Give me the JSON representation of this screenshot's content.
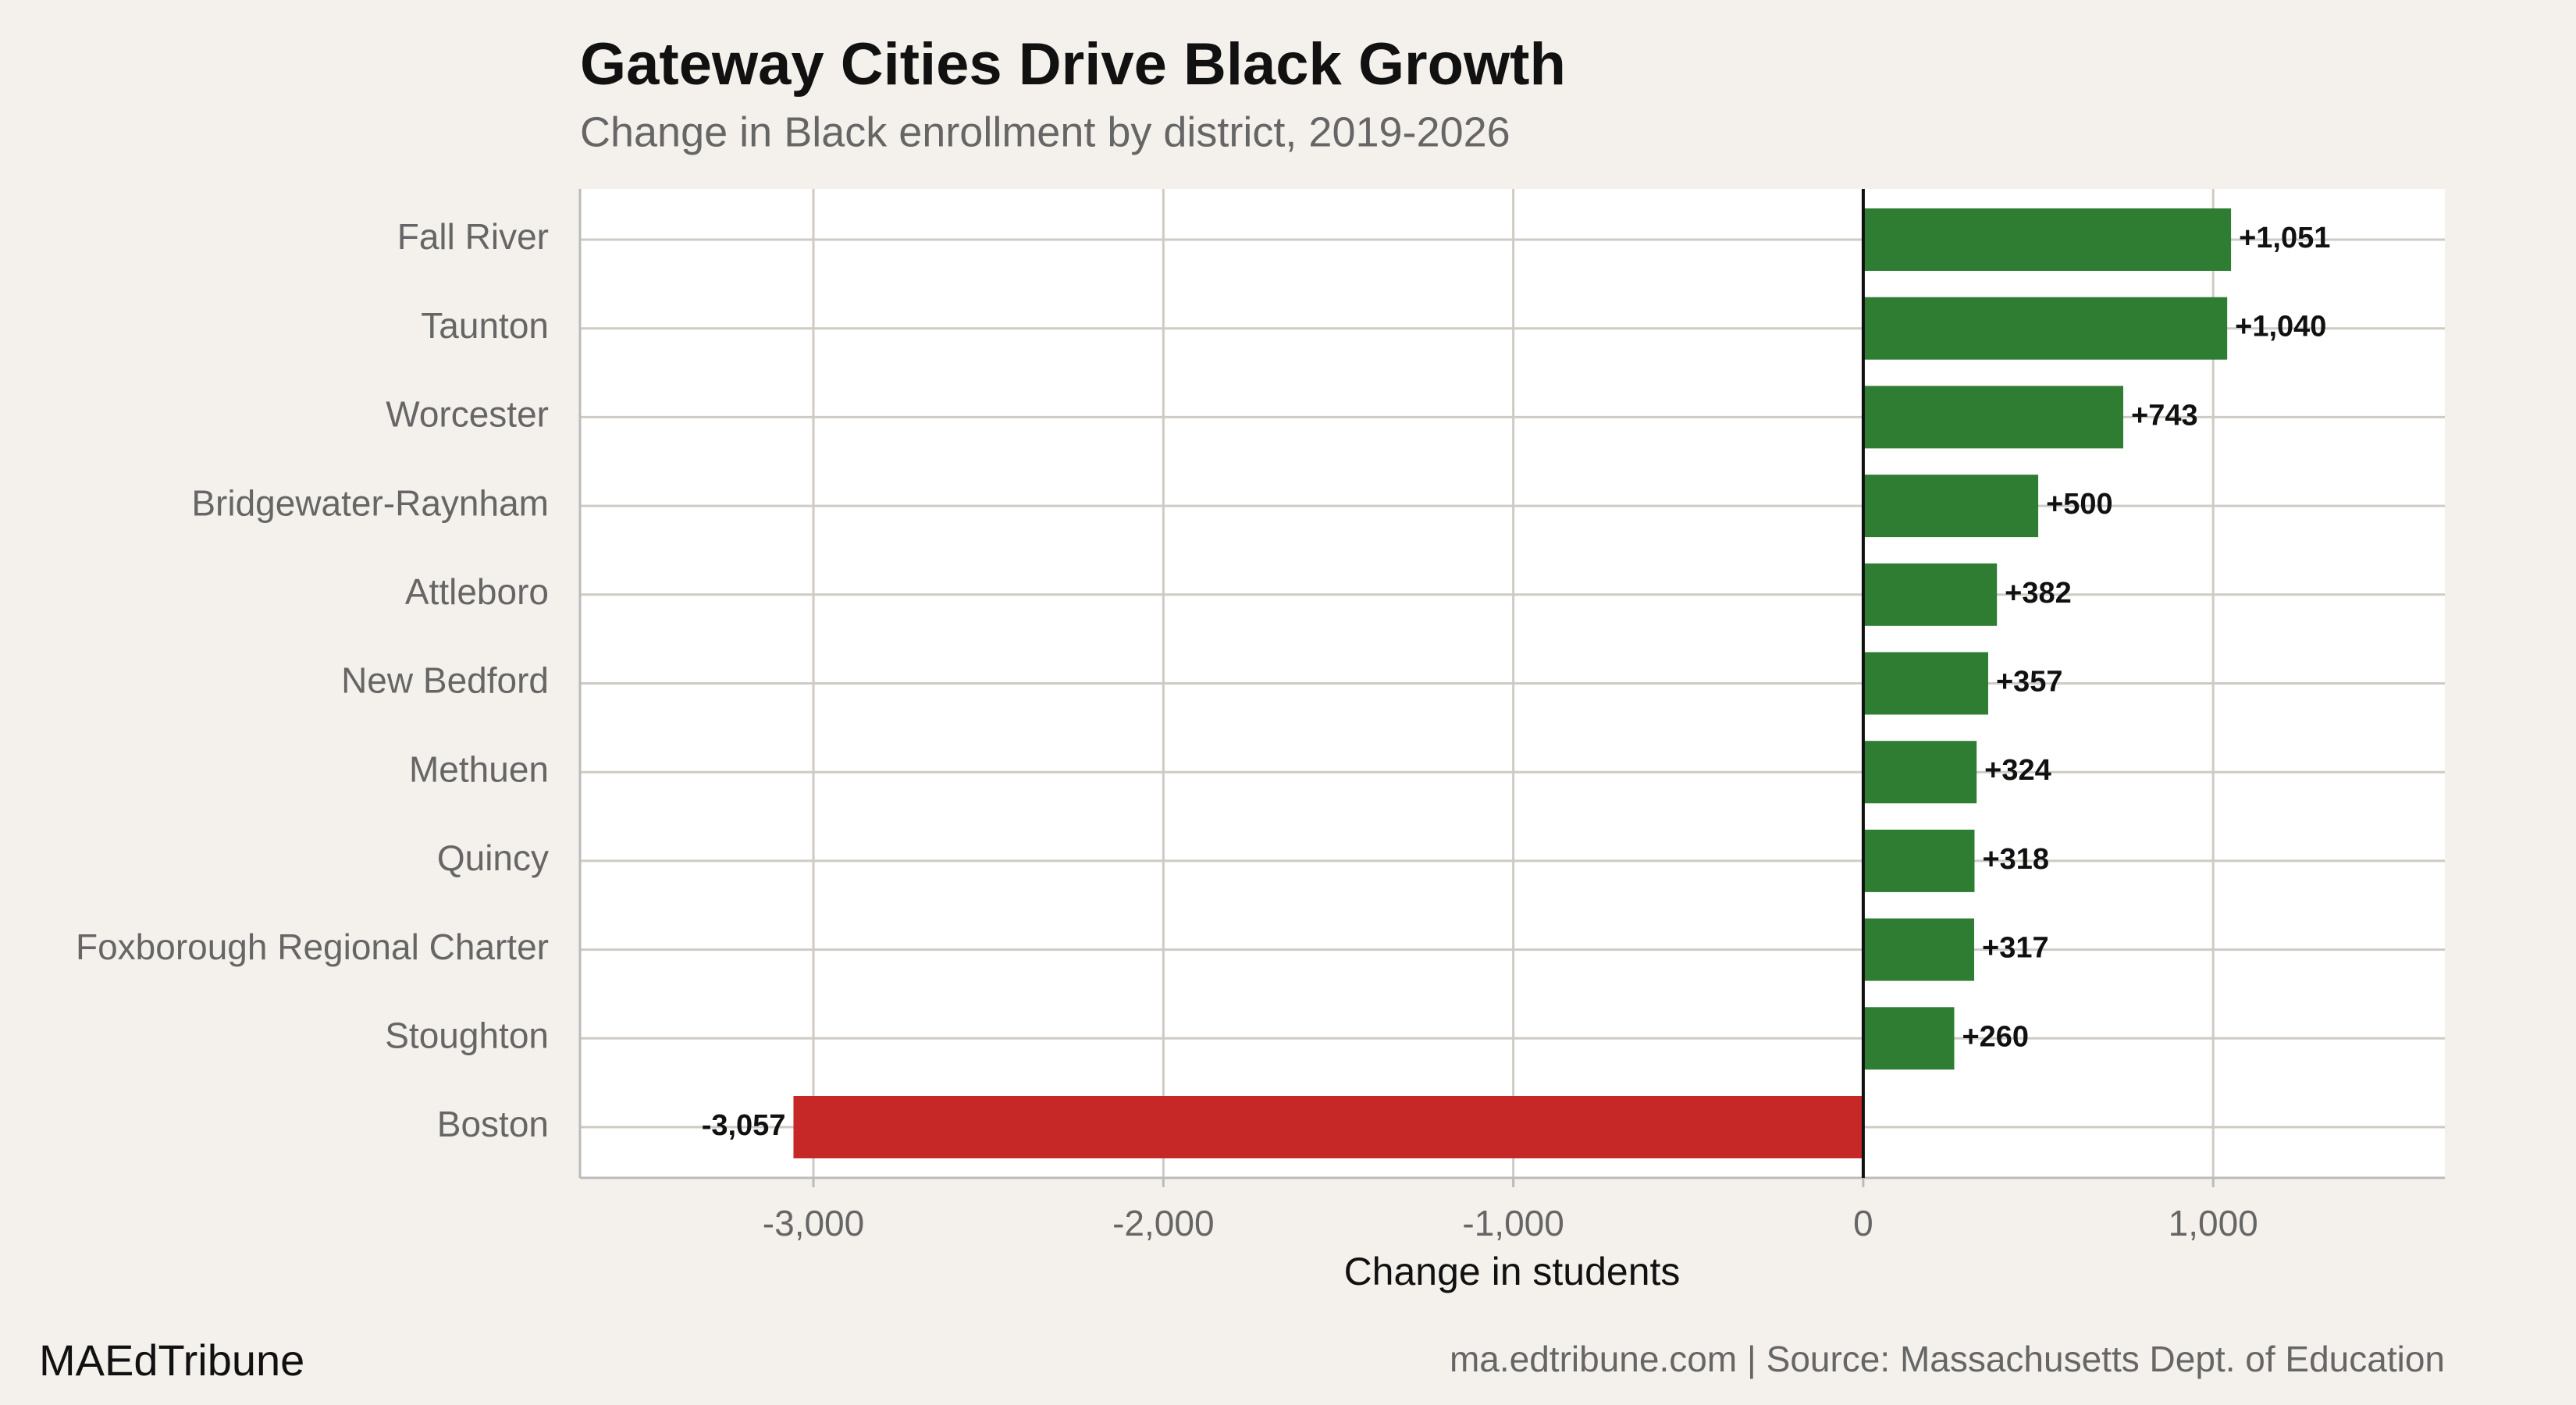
{
  "chart_data": {
    "type": "barh",
    "title": "Gateway Cities Drive Black Growth",
    "subtitle": "Change in Black enrollment by district, 2019-2026",
    "x_label": "Change in students",
    "categories": [
      "Fall River",
      "Taunton",
      "Worcester",
      "Bridgewater-Raynham",
      "Attleboro",
      "New Bedford",
      "Methuen",
      "Quincy",
      "Foxborough Regional Charter",
      "Stoughton",
      "Boston"
    ],
    "values": [
      1051,
      1040,
      743,
      500,
      382,
      357,
      324,
      318,
      317,
      260,
      -3057
    ],
    "value_labels": [
      "+1,051",
      "+1,040",
      "+743",
      "+500",
      "+382",
      "+357",
      "+324",
      "+318",
      "+317",
      "+260",
      "-3,057"
    ],
    "colors": [
      "#2e7d32",
      "#2e7d32",
      "#2e7d32",
      "#2e7d32",
      "#2e7d32",
      "#2e7d32",
      "#2e7d32",
      "#2e7d32",
      "#2e7d32",
      "#2e7d32",
      "#c62828"
    ],
    "xlim": [
      -3667,
      1662
    ],
    "xticks": [
      {
        "value": -3000,
        "label": "-3,000"
      },
      {
        "value": -2000,
        "label": "-2,000"
      },
      {
        "value": -1000,
        "label": "-1,000"
      },
      0,
      {
        "value": 1000,
        "label": "1,000"
      }
    ],
    "grid": true,
    "brand": "MAEdTribune",
    "caption": "ma.edtribune.com | Source: Massachusetts Dept. of Education"
  }
}
